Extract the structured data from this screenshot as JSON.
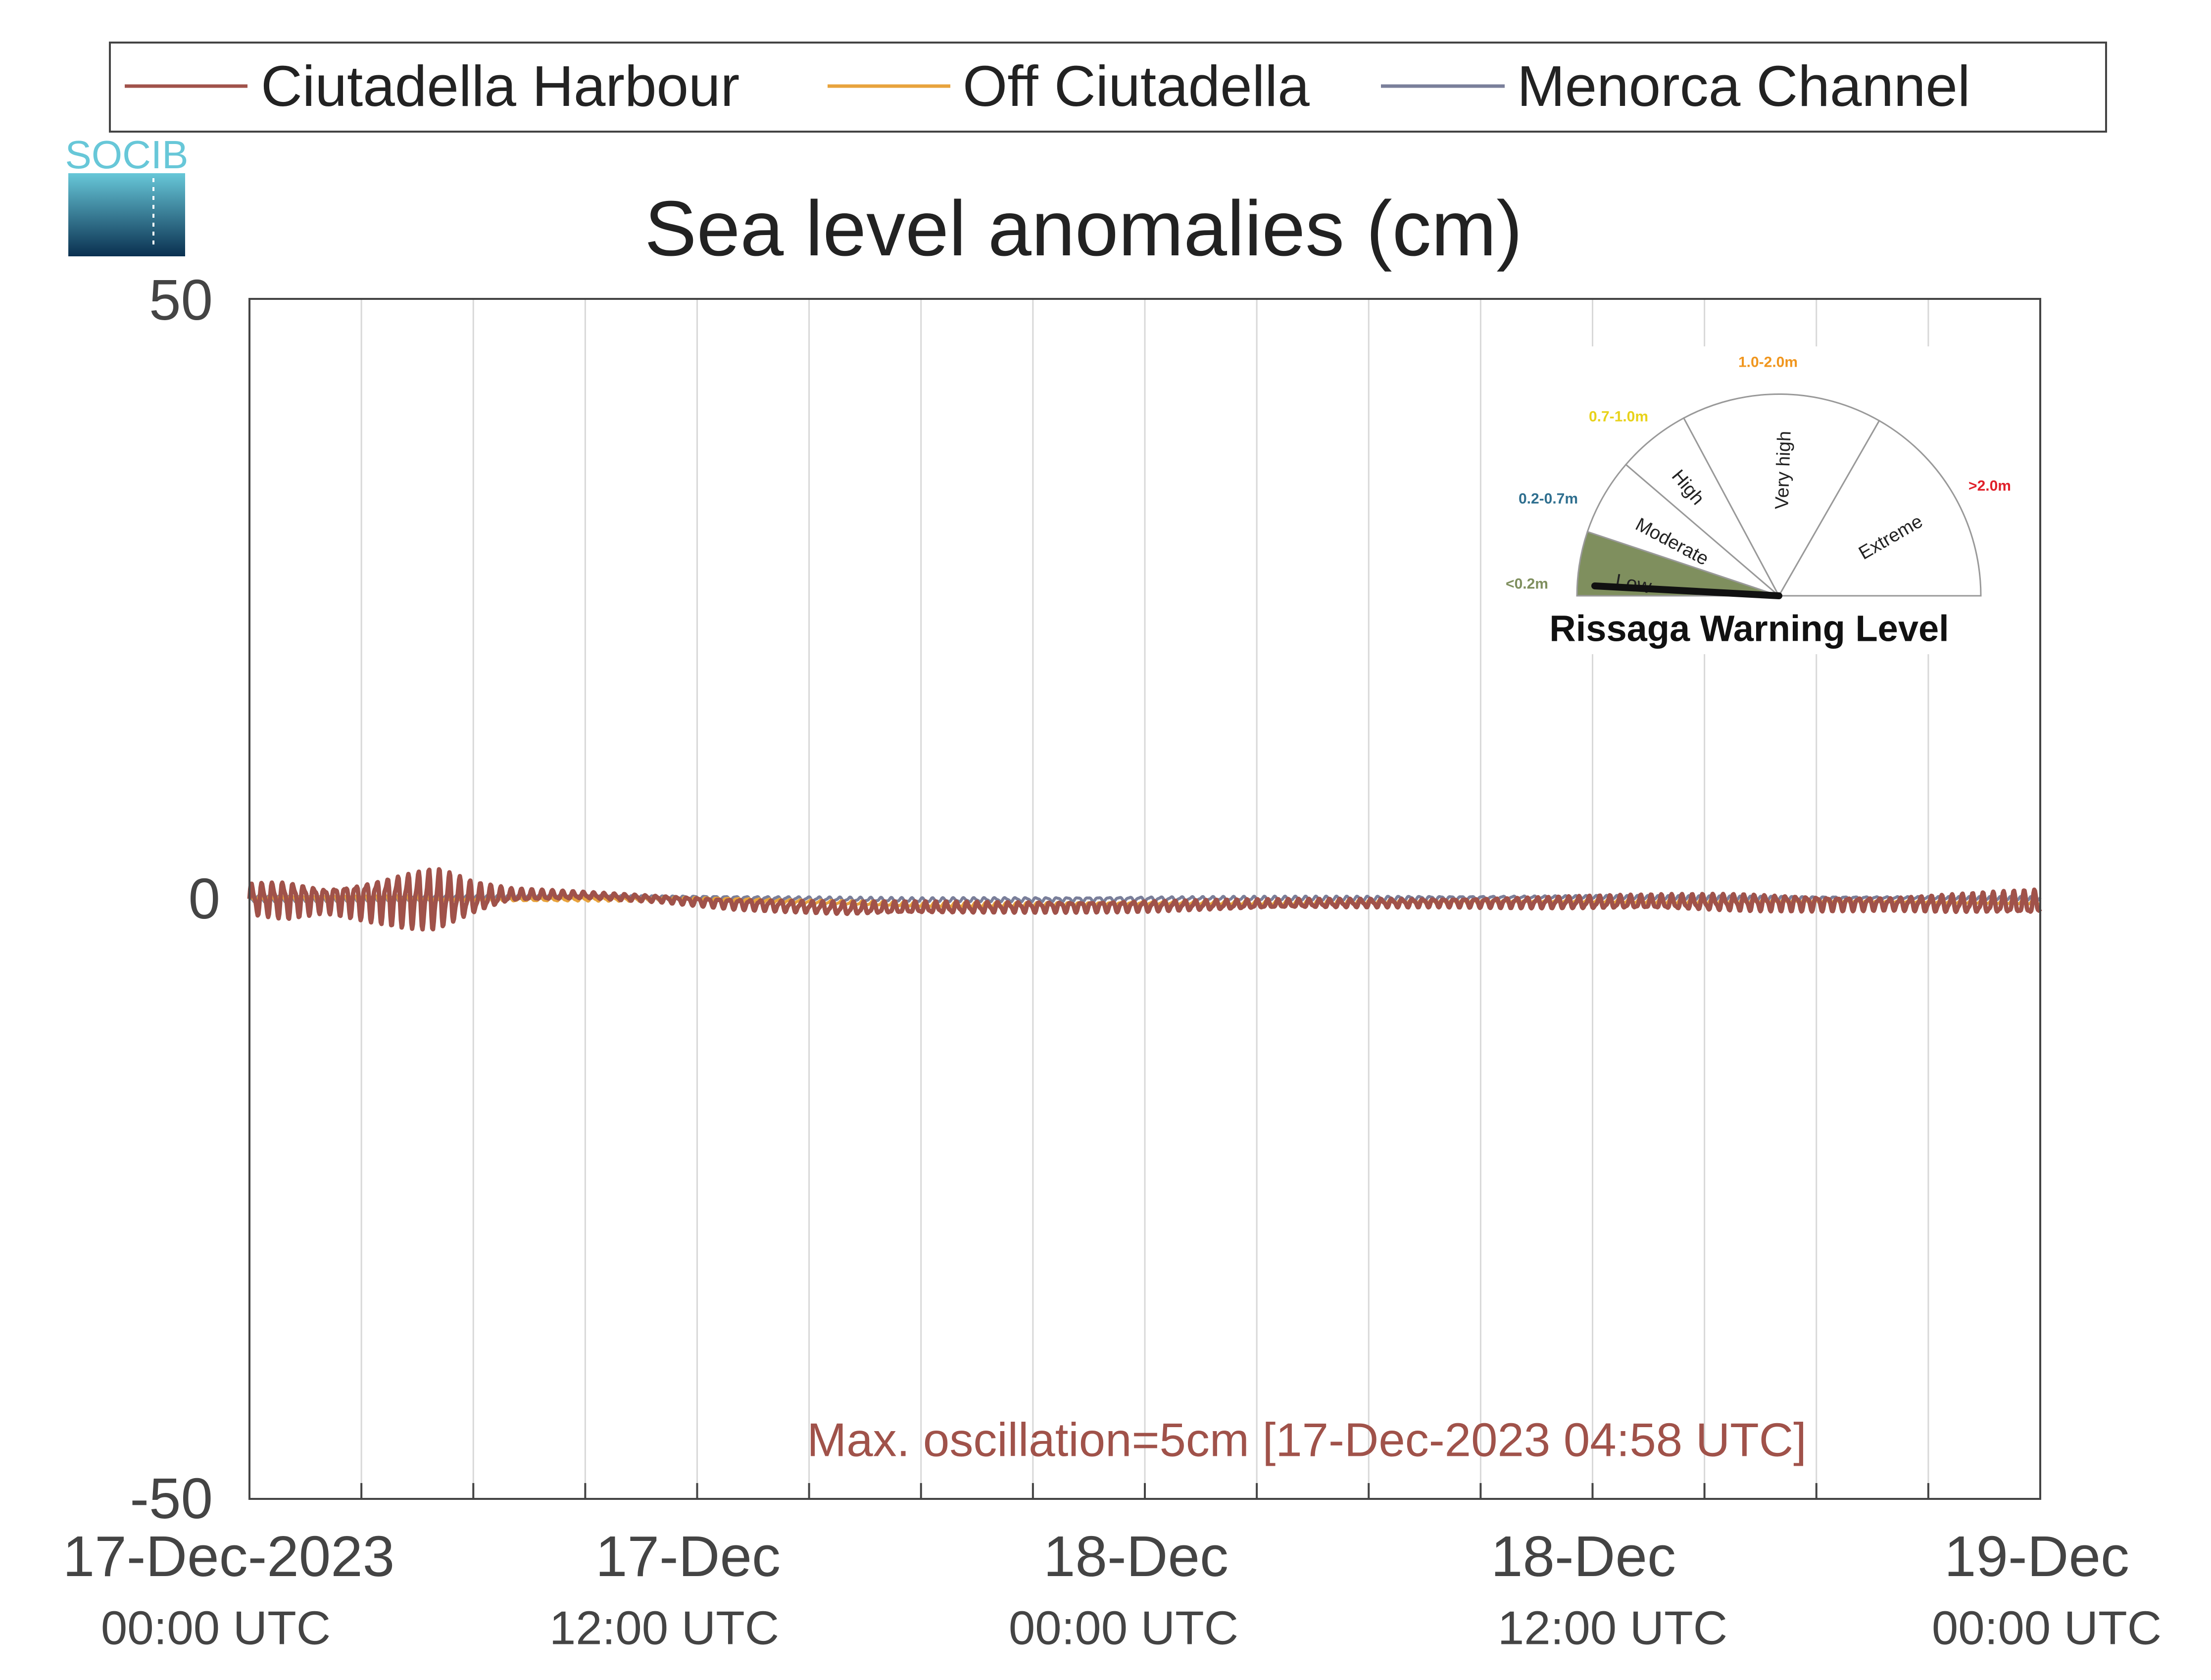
{
  "logo": {
    "text": "SOCIB"
  },
  "legend": {
    "items": [
      {
        "label": "Ciutadella Harbour",
        "color": "#A0524A"
      },
      {
        "label": "Off Ciutadella",
        "color": "#E8A33D"
      },
      {
        "label": "Menorca Channel",
        "color": "#7A7F9A"
      }
    ]
  },
  "annotation": {
    "text": "Max. oscillation=5cm [17-Dec-2023 04:58 UTC]",
    "color": "#A0524A"
  },
  "gauge": {
    "title": "Rissaga Warning Level",
    "pointer_level": "Low",
    "active_color": "#7F8F5E",
    "sectors": [
      {
        "name": "Low",
        "range": "<0.2m",
        "range_color": "#7F8F5E"
      },
      {
        "name": "Moderate",
        "range": "0.2-0.7m",
        "range_color": "#2F6F8F"
      },
      {
        "name": "High",
        "range": "0.7-1.0m",
        "range_color": "#E8D21A"
      },
      {
        "name": "Very high",
        "range": "1.0-2.0m",
        "range_color": "#F0961E"
      },
      {
        "name": "Extreme",
        "range": ">2.0m",
        "range_color": "#E0202A"
      }
    ]
  },
  "chart_data": {
    "type": "line",
    "title": "Sea level anomalies (cm)",
    "xlabel": "",
    "ylabel": "",
    "ylim": [
      -50,
      50
    ],
    "yticks": [
      -50,
      0,
      50
    ],
    "xlim_hours": [
      0,
      48
    ],
    "grid": "vertical lines every 3 hours",
    "legend_position": "top, above the axes",
    "x_ticks": [
      {
        "hour": 0,
        "date": "17-Dec-2023",
        "time": "00:00 UTC"
      },
      {
        "hour": 12,
        "date": "17-Dec",
        "time": "12:00 UTC"
      },
      {
        "hour": 24,
        "date": "18-Dec",
        "time": "00:00 UTC"
      },
      {
        "hour": 36,
        "date": "18-Dec",
        "time": "12:00 UTC"
      },
      {
        "hour": 48,
        "date": "19-Dec",
        "time": "00:00 UTC"
      }
    ],
    "series": [
      {
        "name": "Ciutadella Harbour",
        "color": "#A0524A",
        "envelope": [
          {
            "hour": 0,
            "mean": 0,
            "amp": 1.5
          },
          {
            "hour": 1,
            "mean": 0,
            "amp": 1.8
          },
          {
            "hour": 2,
            "mean": 0,
            "amp": 1.2
          },
          {
            "hour": 3,
            "mean": 0,
            "amp": 1.8
          },
          {
            "hour": 4,
            "mean": 0,
            "amp": 2.5
          },
          {
            "hour": 5,
            "mean": 0,
            "amp": 3.0
          },
          {
            "hour": 6,
            "mean": 0,
            "amp": 1.5
          },
          {
            "hour": 7,
            "mean": 0.3,
            "amp": 0.6
          },
          {
            "hour": 9,
            "mean": 0.3,
            "amp": 0.3
          },
          {
            "hour": 11,
            "mean": 0,
            "amp": 0.3
          },
          {
            "hour": 13,
            "mean": -0.4,
            "amp": 0.5
          },
          {
            "hour": 16,
            "mean": -0.8,
            "amp": 0.6
          },
          {
            "hour": 20,
            "mean": -0.7,
            "amp": 0.5
          },
          {
            "hour": 24,
            "mean": -0.6,
            "amp": 0.5
          },
          {
            "hour": 28,
            "mean": -0.4,
            "amp": 0.4
          },
          {
            "hour": 32,
            "mean": -0.3,
            "amp": 0.4
          },
          {
            "hour": 36,
            "mean": -0.3,
            "amp": 0.6
          },
          {
            "hour": 40,
            "mean": -0.3,
            "amp": 0.8
          },
          {
            "hour": 44,
            "mean": -0.4,
            "amp": 0.6
          },
          {
            "hour": 48,
            "mean": -0.4,
            "amp": 1.2
          }
        ]
      },
      {
        "name": "Off Ciutadella",
        "color": "#E8A33D",
        "envelope": [
          {
            "hour": 0,
            "mean": 0,
            "amp": 0.5
          },
          {
            "hour": 6,
            "mean": 0,
            "amp": 0.3
          },
          {
            "hour": 12,
            "mean": 0,
            "amp": 0.2
          },
          {
            "hour": 18,
            "mean": -0.5,
            "amp": 0.2
          },
          {
            "hour": 24,
            "mean": -0.4,
            "amp": 0.2
          },
          {
            "hour": 36,
            "mean": -0.2,
            "amp": 0.2
          },
          {
            "hour": 48,
            "mean": -0.3,
            "amp": 0.2
          }
        ]
      },
      {
        "name": "Menorca Channel",
        "color": "#7A7F9A",
        "envelope": [
          {
            "hour": 0,
            "mean": 0,
            "amp": 0.3
          },
          {
            "hour": 6,
            "mean": 0.1,
            "amp": 0.2
          },
          {
            "hour": 12,
            "mean": 0.1,
            "amp": 0.2
          },
          {
            "hour": 18,
            "mean": -0.1,
            "amp": 0.2
          },
          {
            "hour": 24,
            "mean": 0,
            "amp": 0.2
          },
          {
            "hour": 36,
            "mean": 0.1,
            "amp": 0.2
          },
          {
            "hour": 48,
            "mean": 0,
            "amp": 0.2
          }
        ]
      }
    ]
  }
}
